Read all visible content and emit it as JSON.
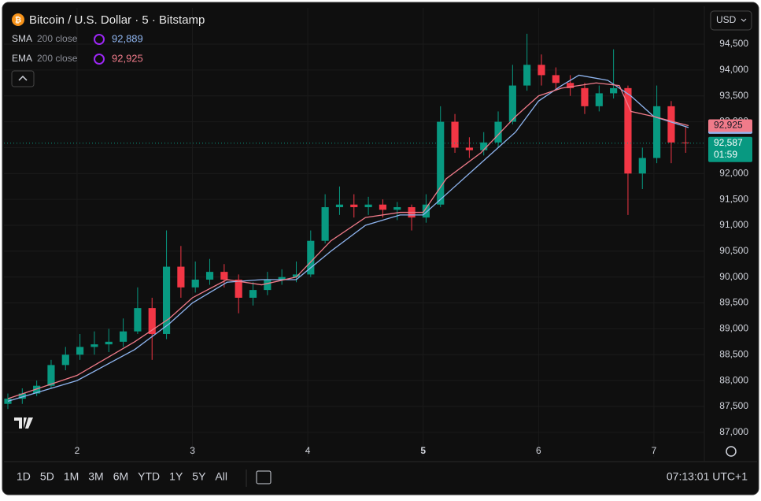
{
  "chart_data": {
    "type": "candlestick",
    "title": "Bitcoin / U.S. Dollar · 5 · Bitstamp",
    "x": [
      1.4,
      1.525,
      1.65,
      1.775,
      1.9,
      2.025,
      2.15,
      2.275,
      2.4,
      2.525,
      2.65,
      2.775,
      2.9,
      3.025,
      3.15,
      3.275,
      3.4,
      3.525,
      3.65,
      3.775,
      3.9,
      4.025,
      4.15,
      4.275,
      4.4,
      4.525,
      4.65,
      4.775,
      4.9,
      5.025,
      5.15,
      5.275,
      5.4,
      5.525,
      5.65,
      5.775,
      5.9,
      6.025,
      6.15,
      6.275,
      6.4,
      6.525,
      6.65,
      6.775,
      6.9,
      7.025,
      7.15,
      7.275
    ],
    "open": [
      87550,
      87650,
      87750,
      87900,
      88300,
      88500,
      88650,
      88700,
      88750,
      88950,
      89400,
      88900,
      90200,
      89800,
      89950,
      90100,
      89950,
      89600,
      89750,
      89950,
      90000,
      90050,
      90700,
      91350,
      91400,
      91350,
      91400,
      91300,
      91350,
      91150,
      91400,
      93000,
      92500,
      92450,
      92600,
      93000,
      93700,
      94100,
      93900,
      93750,
      93650,
      93300,
      93550,
      93650,
      92000,
      92300,
      93300,
      92600
    ],
    "high": [
      87750,
      87850,
      88000,
      88400,
      88650,
      88900,
      88950,
      89000,
      89200,
      89800,
      89600,
      90900,
      90600,
      90300,
      90350,
      90250,
      90050,
      89900,
      90100,
      90150,
      90300,
      90900,
      91600,
      91750,
      91600,
      91550,
      91500,
      91450,
      91400,
      91600,
      93300,
      93150,
      92700,
      92800,
      93200,
      94100,
      94700,
      94300,
      94050,
      93900,
      93750,
      93700,
      94400,
      93700,
      92500,
      93700,
      93400,
      92900
    ],
    "low": [
      87450,
      87550,
      87700,
      87850,
      88200,
      88400,
      88500,
      88550,
      88650,
      88900,
      88400,
      88800,
      89600,
      89700,
      89850,
      89800,
      89300,
      89450,
      89650,
      89850,
      89900,
      90000,
      90650,
      91200,
      91150,
      91200,
      91150,
      91100,
      90900,
      91050,
      91350,
      92400,
      92300,
      92350,
      92500,
      92950,
      93600,
      93700,
      93600,
      93500,
      93150,
      93200,
      93450,
      91200,
      91700,
      92200,
      92200,
      92400
    ],
    "close": [
      87650,
      87750,
      87900,
      88300,
      88500,
      88650,
      88700,
      88750,
      88950,
      89400,
      88900,
      90200,
      89800,
      89950,
      90100,
      89950,
      89600,
      89750,
      89950,
      90000,
      90050,
      90700,
      91350,
      91400,
      91350,
      91400,
      91300,
      91350,
      91150,
      91400,
      93000,
      92500,
      92450,
      92600,
      93000,
      93700,
      94100,
      93900,
      93750,
      93650,
      93300,
      93550,
      93650,
      92000,
      92300,
      93300,
      92600,
      92587
    ],
    "up_color": "#089981",
    "down_color": "#f23645",
    "indicators": [
      {
        "name": "SMA",
        "params": "200 close",
        "color": "#8fb5f0",
        "x": [
          1.4,
          2.0,
          2.5,
          2.8,
          3.0,
          3.3,
          3.6,
          3.9,
          4.2,
          4.5,
          4.8,
          5.0,
          5.2,
          5.5,
          5.8,
          6.0,
          6.2,
          6.35,
          6.6,
          6.8,
          7.0,
          7.3
        ],
        "values": [
          87600,
          88000,
          88600,
          89100,
          89500,
          89900,
          89950,
          89950,
          90500,
          91000,
          91200,
          91200,
          91600,
          92200,
          92800,
          93400,
          93700,
          93900,
          93800,
          93500,
          93100,
          92889
        ],
        "last": {
          "value": 92889,
          "label": "92,889"
        }
      },
      {
        "name": "EMA",
        "params": "200 close",
        "color": "#f07b8a",
        "x": [
          1.4,
          2.0,
          2.5,
          2.8,
          3.0,
          3.3,
          3.6,
          3.9,
          4.2,
          4.5,
          4.8,
          5.0,
          5.2,
          5.5,
          5.8,
          6.0,
          6.2,
          6.5,
          6.7,
          6.8,
          7.0,
          7.3
        ],
        "values": [
          87650,
          88100,
          88750,
          89200,
          89600,
          89950,
          89850,
          90000,
          90700,
          91150,
          91250,
          91250,
          91900,
          92400,
          93100,
          93500,
          93650,
          93750,
          93700,
          93200,
          93100,
          92925
        ],
        "last": {
          "value": 92925,
          "label": "92,925"
        }
      }
    ],
    "current_price": {
      "value": 92587,
      "label": "92,587",
      "countdown": "01:59"
    },
    "xlim": [
      1.366,
      7.437
    ],
    "ylim": [
      86830,
      95200
    ],
    "xticks": [
      2,
      3,
      4,
      5,
      6,
      7
    ],
    "highlight_xtick": 5,
    "yticks": [
      {
        "value": 87000,
        "label": "87,000"
      },
      {
        "value": 87500,
        "label": "87,500"
      },
      {
        "value": 88000,
        "label": "88,000"
      },
      {
        "value": 88500,
        "label": "88,500"
      },
      {
        "value": 89000,
        "label": "89,000"
      },
      {
        "value": 89500,
        "label": "89,500"
      },
      {
        "value": 90000,
        "label": "90,000"
      },
      {
        "value": 90500,
        "label": "90,500"
      },
      {
        "value": 91000,
        "label": "91,000"
      },
      {
        "value": 91500,
        "label": "91,500"
      },
      {
        "value": 92000,
        "label": "92,000"
      },
      {
        "value": 92500,
        "label": "92,500"
      },
      {
        "value": 93000,
        "label": "93,000"
      },
      {
        "value": 93500,
        "label": "93,500"
      },
      {
        "value": 94000,
        "label": "94,000"
      },
      {
        "value": 94500,
        "label": "94,500"
      }
    ],
    "grid": true
  },
  "ui": {
    "currency": "USD",
    "ranges": [
      "1D",
      "5D",
      "1M",
      "3M",
      "6M",
      "YTD",
      "1Y",
      "5Y",
      "All"
    ],
    "clock": "07:13:01 UTC+1"
  }
}
